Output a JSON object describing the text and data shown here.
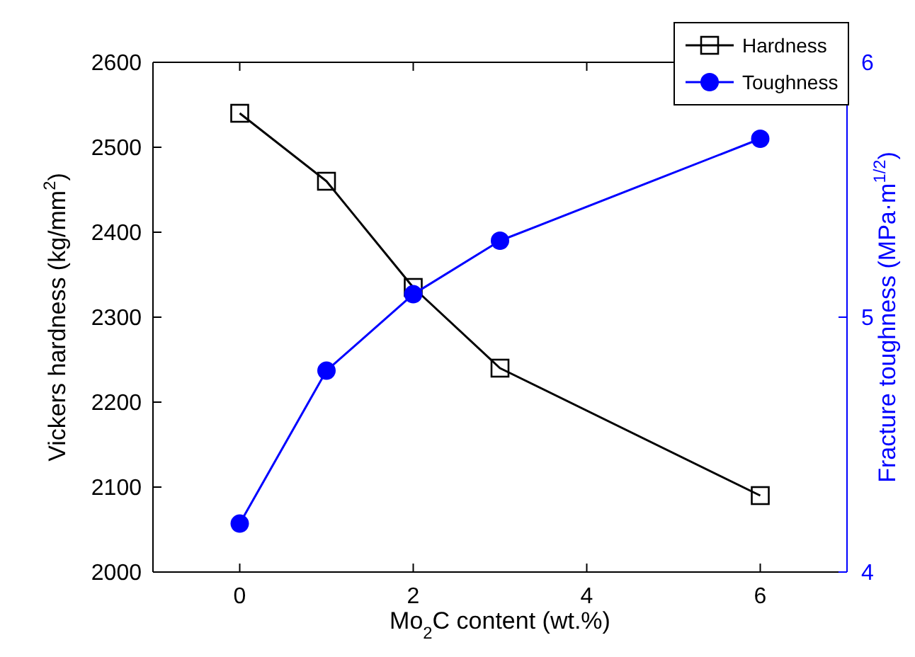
{
  "chart_data": {
    "type": "line",
    "xlabel": "Mo$_{2}$C content (wt.%)",
    "ylabel": "Vickers hardness (kg/mm$^{2}$)",
    "y2label": "Fracture toughness (MPa·m$^{1/2}$)",
    "x": [
      0,
      1,
      2,
      3,
      6
    ],
    "series": [
      {
        "name": "Hardness",
        "color": "#000000",
        "marker": "square",
        "values": [
          2540,
          2460,
          2335,
          2240,
          2090
        ]
      },
      {
        "name": "Toughness",
        "color": "#0000ff",
        "marker": "circle",
        "axis": "y2",
        "values": [
          4.19,
          4.79,
          5.09,
          5.3,
          5.7
        ]
      }
    ],
    "xlim": [
      -1,
      7
    ],
    "xticks": [
      0,
      2,
      4,
      6
    ],
    "ylim": [
      2000,
      2600
    ],
    "yticks": [
      2000,
      2100,
      2200,
      2300,
      2400,
      2500,
      2600
    ],
    "y2lim": [
      4,
      6
    ],
    "y2ticks": [
      4,
      5,
      6
    ],
    "legend": "top right",
    "grid": false
  }
}
